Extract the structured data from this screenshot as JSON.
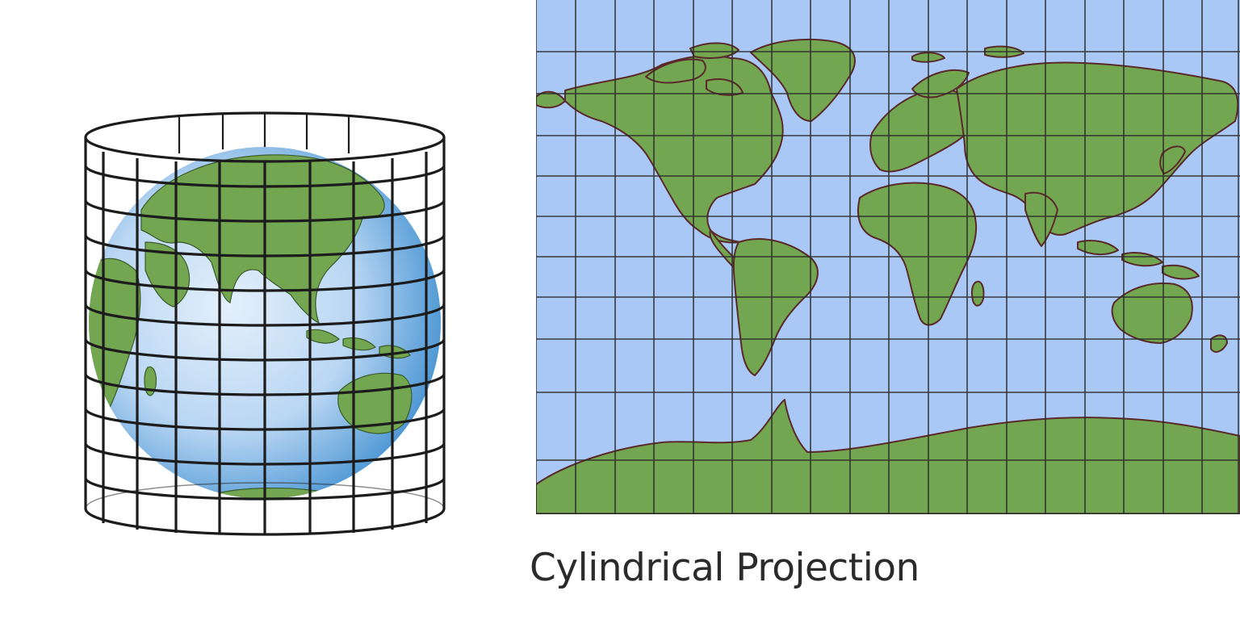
{
  "caption": "Cylindrical Projection",
  "colors": {
    "ocean": "#a9c8f6",
    "land": "#73a651",
    "coast": "#5a2a2a",
    "grid": "#222222",
    "globe_light": "#cfe3f7",
    "globe_dark": "#3f8fd0"
  },
  "icons": {
    "globe": "globe-in-cylinder",
    "map": "flat-world-map"
  }
}
